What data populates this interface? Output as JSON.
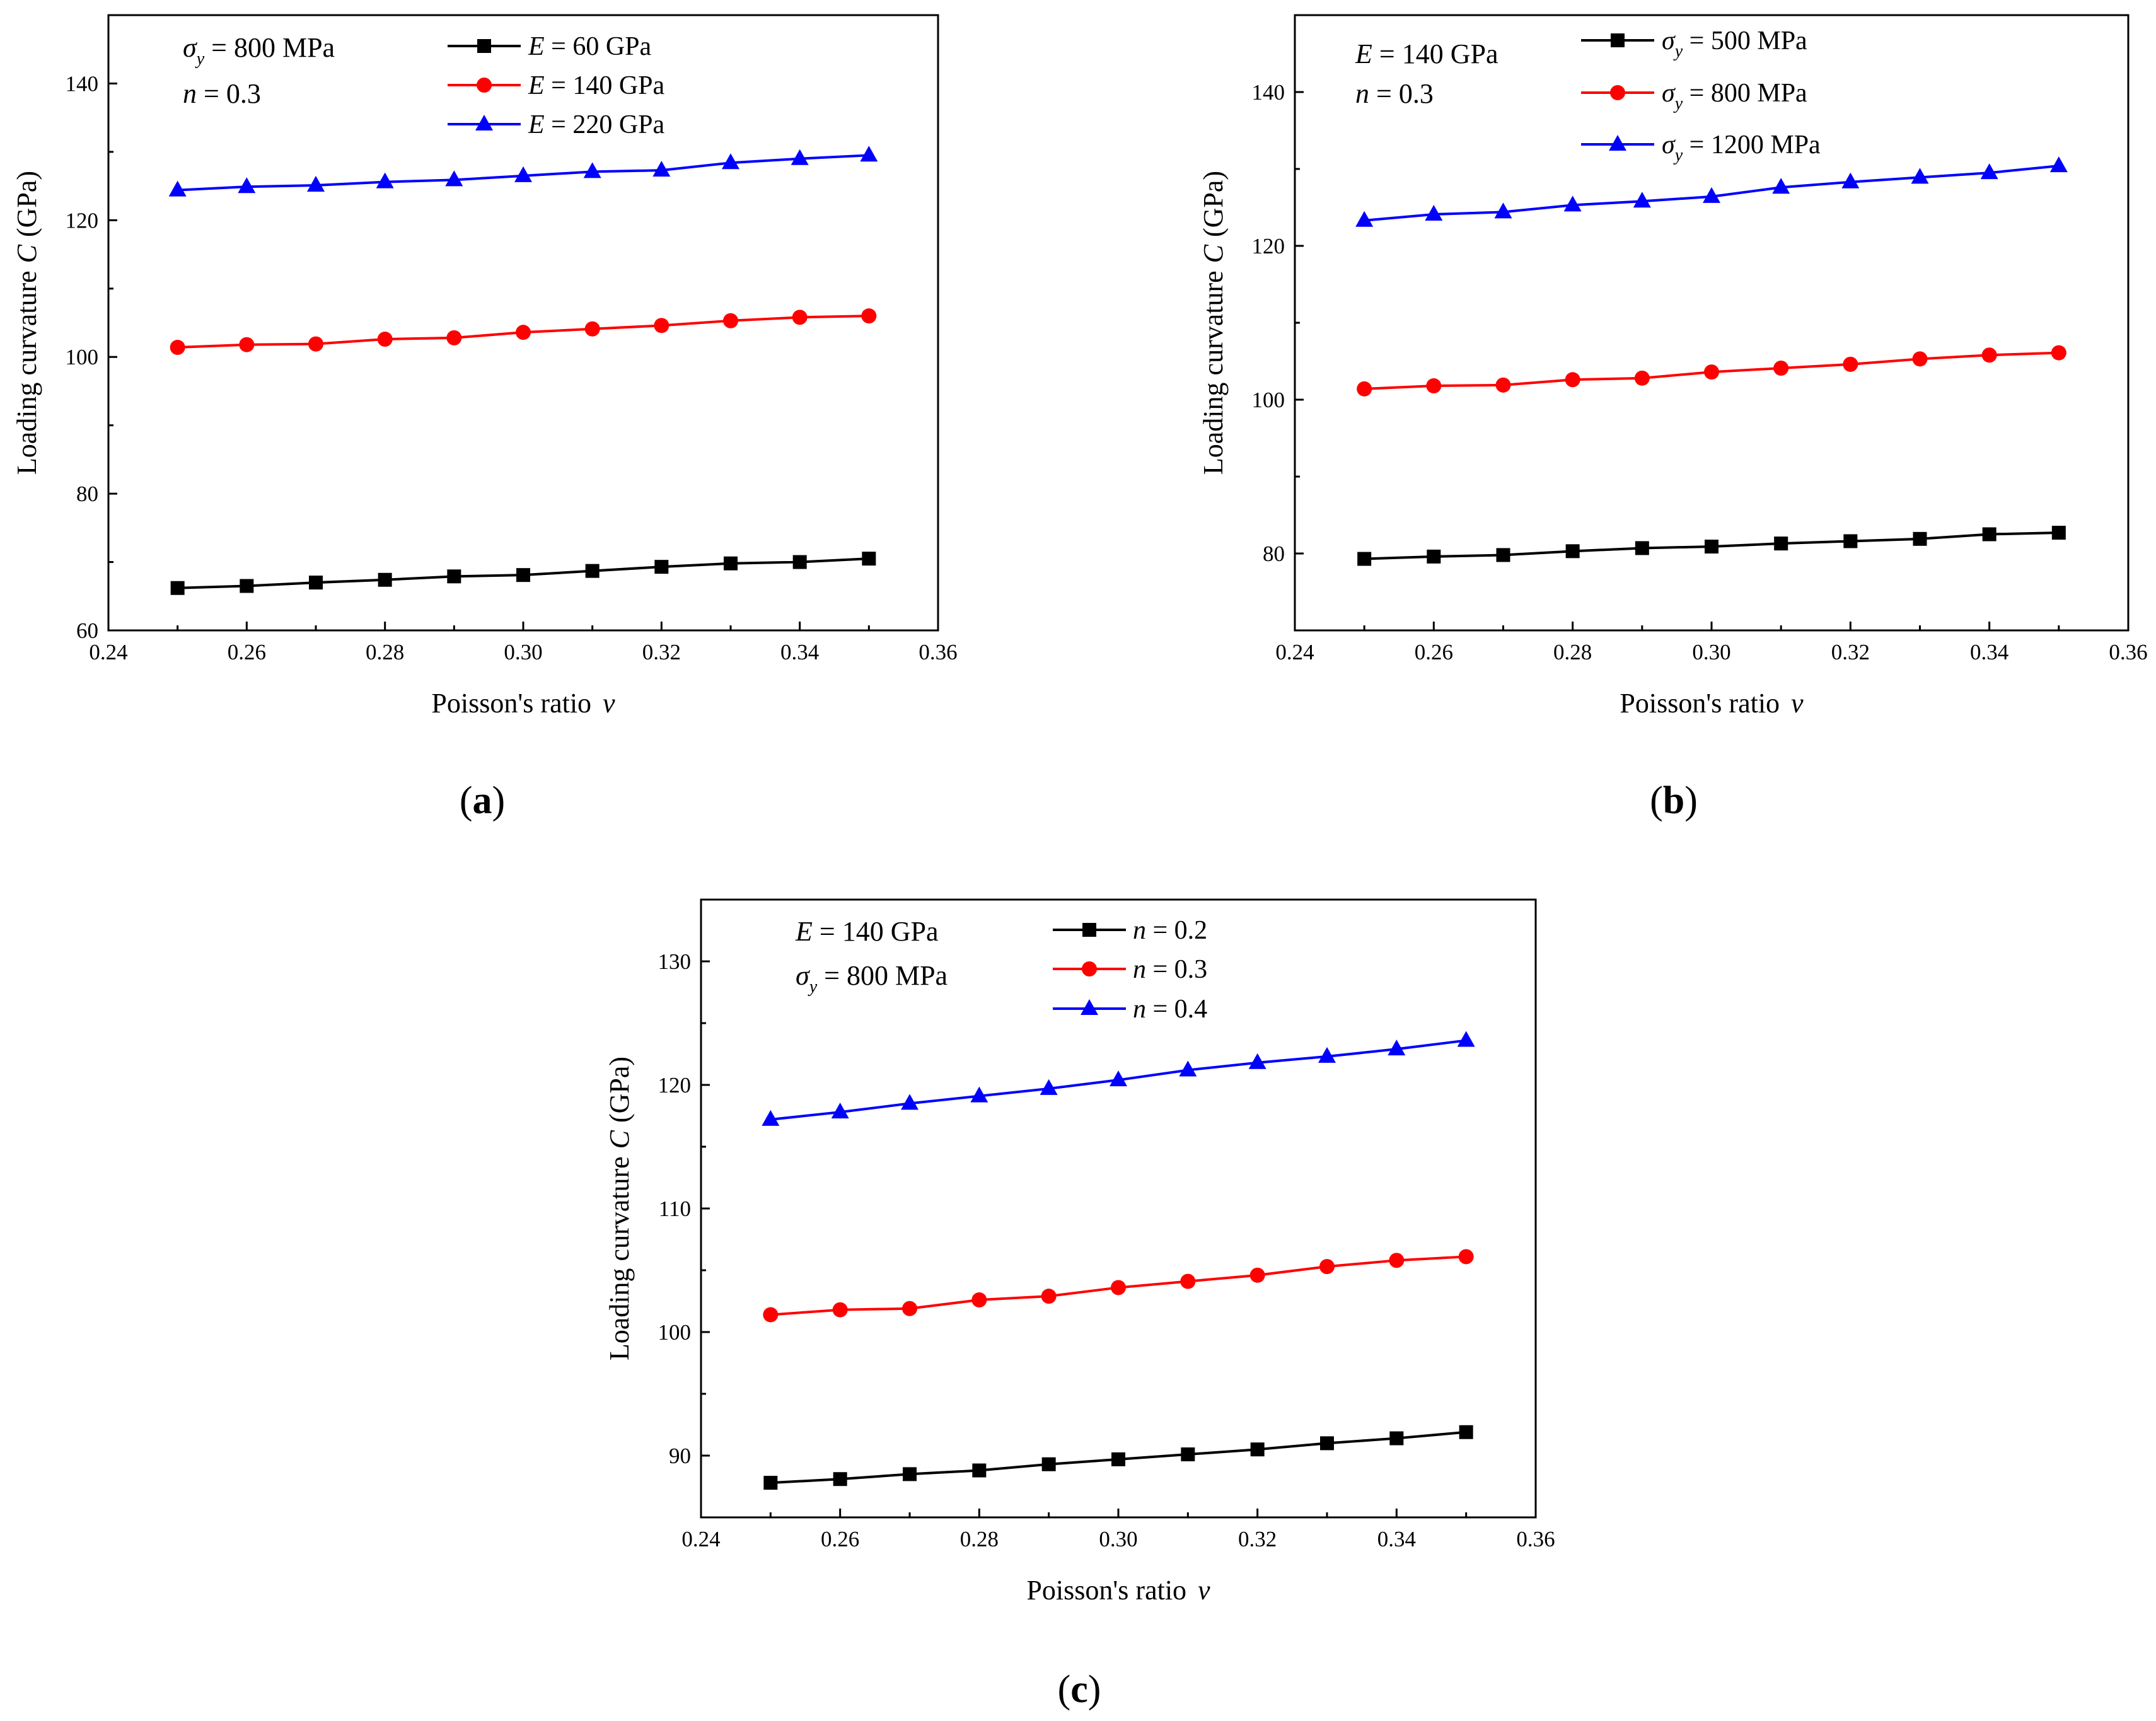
{
  "chart_data": [
    {
      "type": "line",
      "panel_label": "a",
      "xlabel": "Poisson's ratio",
      "xlabel_symbol": "ν",
      "ylabel": "Loading curvature",
      "ylabel_symbol": "C",
      "ylabel_unit": "(GPa)",
      "xlim": [
        0.24,
        0.36
      ],
      "ylim": [
        60,
        150
      ],
      "xticks": [
        "0.24",
        "0.26",
        "0.28",
        "0.30",
        "0.32",
        "0.34",
        "0.36"
      ],
      "yticks": [
        "60",
        "80",
        "100",
        "120",
        "140"
      ],
      "conditions": [
        {
          "symbol": "σ",
          "sub": "y",
          "text": " = 800 MPa"
        },
        {
          "symbol": "n",
          "sub": "",
          "text": " = 0.3"
        }
      ],
      "legend_position": "top-center",
      "x": [
        0.25,
        0.26,
        0.27,
        0.28,
        0.29,
        0.3,
        0.31,
        0.32,
        0.33,
        0.34,
        0.35
      ],
      "series": [
        {
          "symbol": "E",
          "sub": "",
          "text": " = 60 GPa",
          "color": "#000000",
          "marker": "square",
          "values": [
            66.2,
            66.5,
            67.0,
            67.4,
            67.9,
            68.1,
            68.7,
            69.3,
            69.8,
            70.0,
            70.5
          ]
        },
        {
          "symbol": "E",
          "sub": "",
          "text": " = 140 GPa",
          "color": "#ff0000",
          "marker": "circle",
          "values": [
            101.4,
            101.8,
            101.9,
            102.6,
            102.8,
            103.6,
            104.1,
            104.6,
            105.3,
            105.8,
            106.0
          ]
        },
        {
          "symbol": "E",
          "sub": "",
          "text": " = 220 GPa",
          "color": "#0000ff",
          "marker": "triangle",
          "values": [
            124.4,
            124.9,
            125.1,
            125.6,
            125.9,
            126.5,
            127.1,
            127.3,
            128.4,
            129.0,
            129.5
          ]
        }
      ]
    },
    {
      "type": "line",
      "panel_label": "b",
      "xlabel": "Poisson's ratio",
      "xlabel_symbol": "ν",
      "ylabel": "Loading curvature",
      "ylabel_symbol": "C",
      "ylabel_unit": "(GPa)",
      "xlim": [
        0.24,
        0.36
      ],
      "ylim": [
        70,
        150
      ],
      "xticks": [
        "0.24",
        "0.26",
        "0.28",
        "0.30",
        "0.32",
        "0.34",
        "0.36"
      ],
      "yticks": [
        "80",
        "100",
        "120",
        "140"
      ],
      "conditions": [
        {
          "symbol": "E",
          "sub": "",
          "text": " = 140 GPa"
        },
        {
          "symbol": "n",
          "sub": "",
          "text": " = 0.3"
        }
      ],
      "legend_position": "top-center",
      "x": [
        0.25,
        0.26,
        0.27,
        0.28,
        0.29,
        0.3,
        0.31,
        0.32,
        0.33,
        0.34,
        0.35
      ],
      "series": [
        {
          "symbol": "σ",
          "sub": "y",
          "text": " = 500 MPa",
          "color": "#000000",
          "marker": "square",
          "values": [
            79.3,
            79.6,
            79.8,
            80.3,
            80.7,
            80.9,
            81.3,
            81.6,
            81.9,
            82.5,
            82.7
          ]
        },
        {
          "symbol": "σ",
          "sub": "y",
          "text": " = 800 MPa",
          "color": "#ff0000",
          "marker": "circle",
          "values": [
            101.4,
            101.8,
            101.9,
            102.6,
            102.8,
            103.6,
            104.1,
            104.6,
            105.3,
            105.8,
            106.1
          ]
        },
        {
          "symbol": "σ",
          "sub": "y",
          "text": " = 1200 MPa",
          "color": "#0000ff",
          "marker": "triangle",
          "values": [
            123.3,
            124.1,
            124.4,
            125.3,
            125.8,
            126.4,
            127.6,
            128.3,
            128.9,
            129.5,
            130.4
          ]
        }
      ]
    },
    {
      "type": "line",
      "panel_label": "c",
      "xlabel": "Poisson's ratio",
      "xlabel_symbol": "ν",
      "ylabel": "Loading curvature",
      "ylabel_symbol": "C",
      "ylabel_unit": "(GPa)",
      "xlim": [
        0.24,
        0.36
      ],
      "ylim": [
        85,
        135
      ],
      "xticks": [
        "0.24",
        "0.26",
        "0.28",
        "0.30",
        "0.32",
        "0.34",
        "0.36"
      ],
      "yticks": [
        "90",
        "100",
        "110",
        "120",
        "130"
      ],
      "conditions": [
        {
          "symbol": "E",
          "sub": "",
          "text": " = 140 GPa"
        },
        {
          "symbol": "σ",
          "sub": "y",
          "text": " = 800 MPa"
        }
      ],
      "legend_position": "top-center",
      "x": [
        0.25,
        0.26,
        0.27,
        0.28,
        0.29,
        0.3,
        0.31,
        0.32,
        0.33,
        0.34,
        0.35
      ],
      "series": [
        {
          "symbol": "n",
          "sub": "",
          "text": " = 0.2",
          "color": "#000000",
          "marker": "square",
          "values": [
            87.8,
            88.1,
            88.5,
            88.8,
            89.3,
            89.7,
            90.1,
            90.5,
            91.0,
            91.4,
            91.9
          ]
        },
        {
          "symbol": "n",
          "sub": "",
          "text": " = 0.3",
          "color": "#ff0000",
          "marker": "circle",
          "values": [
            101.4,
            101.8,
            101.9,
            102.6,
            102.9,
            103.6,
            104.1,
            104.6,
            105.3,
            105.8,
            106.1
          ]
        },
        {
          "symbol": "n",
          "sub": "",
          "text": " = 0.4",
          "color": "#0000ff",
          "marker": "triangle",
          "values": [
            117.2,
            117.8,
            118.5,
            119.1,
            119.7,
            120.4,
            121.2,
            121.8,
            122.3,
            122.9,
            123.6
          ]
        }
      ]
    }
  ]
}
